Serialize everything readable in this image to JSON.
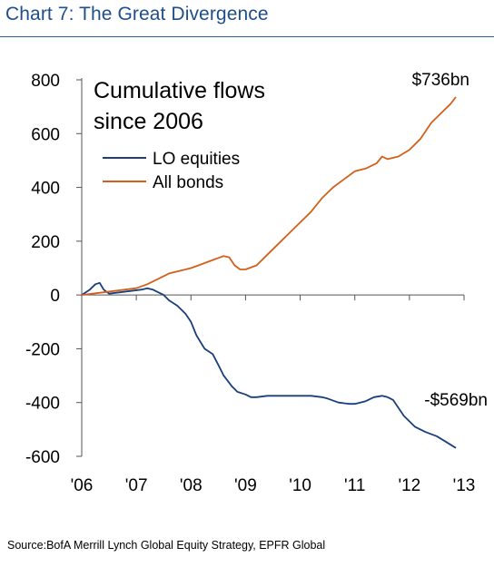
{
  "header": {
    "title": "Chart 7: The Great Divergence"
  },
  "source": "Source:BofA Merrill Lynch Global Equity Strategy, EPFR Global",
  "chart_data": {
    "type": "line",
    "title": "Cumulative flows since 2006",
    "title_lines": [
      "Cumulative flows",
      "since 2006"
    ],
    "xlabel": "",
    "ylabel": "",
    "x_ticks": [
      "'06",
      "'07",
      "'08",
      "'09",
      "'10",
      "'11",
      "'12",
      "'13"
    ],
    "xlim": [
      2006,
      2013
    ],
    "ylim": [
      -600,
      800
    ],
    "y_ticks": [
      800,
      600,
      400,
      200,
      0,
      -200,
      -400,
      -600
    ],
    "grid": false,
    "legend": "top-left",
    "colors": {
      "equities": "#1a3f7a",
      "bonds": "#d2601a"
    },
    "series": [
      {
        "name": "LO equities",
        "key": "equities",
        "x": [
          2006.0,
          2006.15,
          2006.25,
          2006.33,
          2006.4,
          2006.5,
          2006.7,
          2006.9,
          2007.1,
          2007.2,
          2007.3,
          2007.4,
          2007.5,
          2007.6,
          2007.75,
          2007.9,
          2008.0,
          2008.1,
          2008.25,
          2008.4,
          2008.5,
          2008.6,
          2008.75,
          2008.85,
          2009.0,
          2009.1,
          2009.2,
          2009.4,
          2009.6,
          2009.8,
          2010.0,
          2010.2,
          2010.4,
          2010.5,
          2010.7,
          2010.9,
          2011.0,
          2011.2,
          2011.35,
          2011.5,
          2011.6,
          2011.7,
          2011.8,
          2011.9,
          2012.0,
          2012.1,
          2012.3,
          2012.5,
          2012.7,
          2012.85
        ],
        "values": [
          0,
          20,
          40,
          45,
          20,
          5,
          10,
          15,
          20,
          25,
          20,
          10,
          0,
          -20,
          -40,
          -70,
          -100,
          -150,
          -200,
          -220,
          -260,
          -300,
          -340,
          -360,
          -370,
          -380,
          -380,
          -375,
          -375,
          -375,
          -375,
          -375,
          -380,
          -385,
          -400,
          -405,
          -405,
          -395,
          -380,
          -375,
          -380,
          -390,
          -420,
          -450,
          -470,
          -490,
          -510,
          -525,
          -550,
          -569
        ],
        "end_label": "-$569bn"
      },
      {
        "name": "All bonds",
        "key": "bonds",
        "x": [
          2006.0,
          2006.2,
          2006.4,
          2006.6,
          2006.8,
          2007.0,
          2007.2,
          2007.4,
          2007.6,
          2007.8,
          2008.0,
          2008.2,
          2008.4,
          2008.6,
          2008.7,
          2008.8,
          2008.9,
          2009.0,
          2009.2,
          2009.4,
          2009.6,
          2009.8,
          2010.0,
          2010.2,
          2010.4,
          2010.6,
          2010.8,
          2011.0,
          2011.2,
          2011.4,
          2011.5,
          2011.6,
          2011.8,
          2012.0,
          2012.2,
          2012.4,
          2012.6,
          2012.75,
          2012.85
        ],
        "values": [
          0,
          5,
          10,
          15,
          20,
          25,
          40,
          60,
          80,
          90,
          100,
          115,
          130,
          145,
          140,
          110,
          95,
          95,
          110,
          150,
          190,
          230,
          270,
          310,
          360,
          400,
          430,
          460,
          470,
          490,
          515,
          505,
          515,
          540,
          580,
          640,
          680,
          710,
          736
        ],
        "end_label": "$736bn"
      }
    ]
  }
}
